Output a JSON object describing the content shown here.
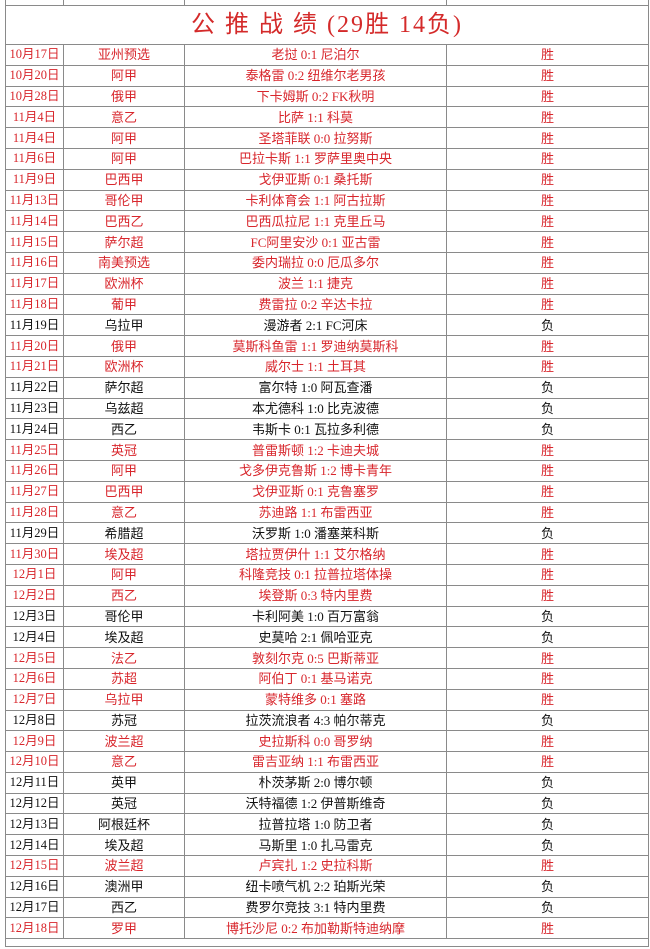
{
  "title": "公 推 战 绩 (29胜 14负)",
  "colors": {
    "win": "#d8262c",
    "loss": "#111111",
    "border": "#8a8a8a"
  },
  "rows": [
    {
      "date": "10月17日",
      "league": "亚州预选",
      "match": "老挝 0:1 尼泊尔",
      "result": "胜"
    },
    {
      "date": "10月20日",
      "league": "阿甲",
      "match": "泰格雷 0:2 纽维尔老男孩",
      "result": "胜"
    },
    {
      "date": "10月28日",
      "league": "俄甲",
      "match": "下卡姆斯 0:2 FK秋明",
      "result": "胜"
    },
    {
      "date": "11月4日",
      "league": "意乙",
      "match": "比萨 1:1 科莫",
      "result": "胜"
    },
    {
      "date": "11月4日",
      "league": "阿甲",
      "match": "圣塔菲联 0:0 拉努斯",
      "result": "胜"
    },
    {
      "date": "11月6日",
      "league": "阿甲",
      "match": "巴拉卡斯 1:1 罗萨里奥中央",
      "result": "胜"
    },
    {
      "date": "11月9日",
      "league": "巴西甲",
      "match": "戈伊亚斯 0:1 桑托斯",
      "result": "胜"
    },
    {
      "date": "11月13日",
      "league": "哥伦甲",
      "match": "卡利体育会 1:1 阿古拉斯",
      "result": "胜"
    },
    {
      "date": "11月14日",
      "league": "巴西乙",
      "match": "巴西瓜拉尼 1:1 克里丘马",
      "result": "胜"
    },
    {
      "date": "11月15日",
      "league": "萨尔超",
      "match": "FC阿里安沙 0:1 亚古雷",
      "result": "胜"
    },
    {
      "date": "11月16日",
      "league": "南美预选",
      "match": "委内瑞拉 0:0 厄瓜多尔",
      "result": "胜"
    },
    {
      "date": "11月17日",
      "league": "欧洲杯",
      "match": "波兰 1:1 捷克",
      "result": "胜"
    },
    {
      "date": "11月18日",
      "league": "葡甲",
      "match": "费雷拉 0:2 辛达卡拉",
      "result": "胜"
    },
    {
      "date": "11月19日",
      "league": "乌拉甲",
      "match": "漫游者 2:1 FC河床",
      "result": "负"
    },
    {
      "date": "11月20日",
      "league": "俄甲",
      "match": "莫斯科鱼雷 1:1 罗迪纳莫斯科",
      "result": "胜"
    },
    {
      "date": "11月21日",
      "league": "欧洲杯",
      "match": "威尔士 1:1 土耳其",
      "result": "胜"
    },
    {
      "date": "11月22日",
      "league": "萨尔超",
      "match": "富尔特 1:0 阿瓦查潘",
      "result": "负"
    },
    {
      "date": "11月23日",
      "league": "乌兹超",
      "match": "本尤德科 1:0 比克波德",
      "result": "负"
    },
    {
      "date": "11月24日",
      "league": "西乙",
      "match": "韦斯卡 0:1 瓦拉多利德",
      "result": "负"
    },
    {
      "date": "11月25日",
      "league": "英冠",
      "match": "普雷斯顿 1:2 卡迪夫城",
      "result": "胜"
    },
    {
      "date": "11月26日",
      "league": "阿甲",
      "match": "戈多伊克鲁斯 1:2 博卡青年",
      "result": "胜"
    },
    {
      "date": "11月27日",
      "league": "巴西甲",
      "match": "戈伊亚斯 0:1 克鲁塞罗",
      "result": "胜"
    },
    {
      "date": "11月28日",
      "league": "意乙",
      "match": "苏迪路 1:1 布雷西亚",
      "result": "胜"
    },
    {
      "date": "11月29日",
      "league": "希腊超",
      "match": "沃罗斯 1:0 潘塞莱科斯",
      "result": "负"
    },
    {
      "date": "11月30日",
      "league": "埃及超",
      "match": "塔拉贾伊什 1:1 艾尔格纳",
      "result": "胜"
    },
    {
      "date": "12月1日",
      "league": "阿甲",
      "match": "科隆竞技 0:1 拉普拉塔体操",
      "result": "胜"
    },
    {
      "date": "12月2日",
      "league": "西乙",
      "match": "埃登斯 0:3 特内里费",
      "result": "胜"
    },
    {
      "date": "12月3日",
      "league": "哥伦甲",
      "match": "卡利阿美 1:0 百万富翁",
      "result": "负"
    },
    {
      "date": "12月4日",
      "league": "埃及超",
      "match": "史莫哈 2:1 佩哈亚克",
      "result": "负"
    },
    {
      "date": "12月5日",
      "league": "法乙",
      "match": "敦刻尔克 0:5 巴斯蒂亚",
      "result": "胜"
    },
    {
      "date": "12月6日",
      "league": "苏超",
      "match": "阿伯丁 0:1 基马诺克",
      "result": "胜"
    },
    {
      "date": "12月7日",
      "league": "乌拉甲",
      "match": "蒙特维多 0:1 塞路",
      "result": "胜"
    },
    {
      "date": "12月8日",
      "league": "苏冠",
      "match": "拉茨流浪者 4:3 帕尔蒂克",
      "result": "负"
    },
    {
      "date": "12月9日",
      "league": "波兰超",
      "match": "史拉斯科 0:0 哥罗纳",
      "result": "胜"
    },
    {
      "date": "12月10日",
      "league": "意乙",
      "match": "雷吉亚纳 1:1 布雷西亚",
      "result": "胜"
    },
    {
      "date": "12月11日",
      "league": "英甲",
      "match": "朴茨茅斯 2:0 博尔顿",
      "result": "负"
    },
    {
      "date": "12月12日",
      "league": "英冠",
      "match": "沃特福德 1:2 伊普斯维奇",
      "result": "负"
    },
    {
      "date": "12月13日",
      "league": "阿根廷杯",
      "match": "拉普拉塔 1:0 防卫者",
      "result": "负"
    },
    {
      "date": "12月14日",
      "league": "埃及超",
      "match": "马斯里 1:0 扎马雷克",
      "result": "负"
    },
    {
      "date": "12月15日",
      "league": "波兰超",
      "match": "卢宾扎 1:2 史拉科斯",
      "result": "胜"
    },
    {
      "date": "12月16日",
      "league": "澳洲甲",
      "match": "纽卡喷气机 2:2 珀斯光荣",
      "result": "负"
    },
    {
      "date": "12月17日",
      "league": "西乙",
      "match": "费罗尔竞技 3:1 特内里费",
      "result": "负"
    },
    {
      "date": "12月18日",
      "league": "罗甲",
      "match": "博托沙尼 0:2 布加勒斯特迪纳摩",
      "result": "胜"
    }
  ]
}
